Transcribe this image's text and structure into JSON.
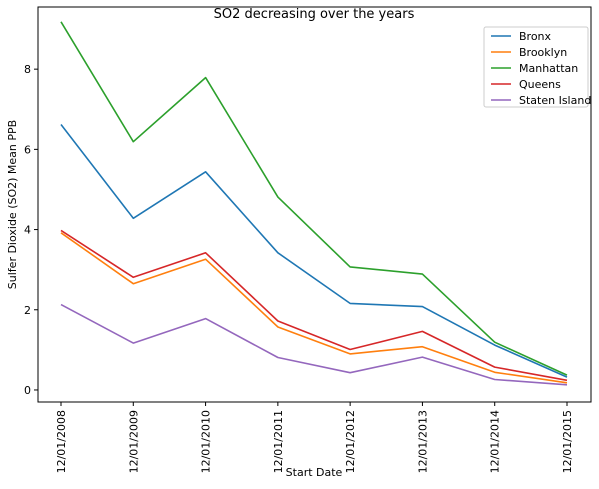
{
  "chart_data": {
    "type": "line",
    "title": "SO2 decreasing over the years",
    "xlabel": "Start Date",
    "ylabel": "Sulfer Dioxide (SO2) Mean PPB",
    "categories": [
      "12/01/2008",
      "12/01/2009",
      "12/01/2010",
      "12/01/2011",
      "12/01/2012",
      "12/01/2013",
      "12/01/2014",
      "12/01/2015"
    ],
    "ylim": [
      -0.3,
      9.55
    ],
    "yticks": [
      0,
      2,
      4,
      6,
      8
    ],
    "grid": false,
    "legend_position": "top-right",
    "series": [
      {
        "name": "Bronx",
        "color": "#1f77b4",
        "values": [
          6.62,
          4.28,
          5.44,
          3.42,
          2.16,
          2.08,
          1.12,
          0.32
        ]
      },
      {
        "name": "Brooklyn",
        "color": "#ff7f0e",
        "values": [
          3.92,
          2.65,
          3.26,
          1.57,
          0.9,
          1.08,
          0.44,
          0.18
        ]
      },
      {
        "name": "Manhattan",
        "color": "#2ca02c",
        "values": [
          9.18,
          6.19,
          7.79,
          4.81,
          3.07,
          2.89,
          1.19,
          0.37
        ]
      },
      {
        "name": "Queens",
        "color": "#d62728",
        "values": [
          3.98,
          2.81,
          3.42,
          1.72,
          1.01,
          1.46,
          0.57,
          0.24
        ]
      },
      {
        "name": "Staten Island",
        "color": "#9467bd",
        "values": [
          2.13,
          1.17,
          1.78,
          0.81,
          0.43,
          0.82,
          0.26,
          0.13
        ]
      }
    ]
  }
}
